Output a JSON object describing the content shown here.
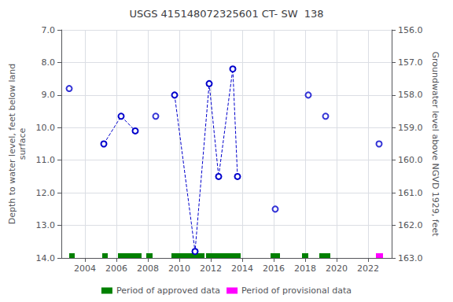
{
  "chart_data": {
    "type": "line",
    "title": "USGS 415148072325601 CT- SW  138",
    "ylabel": "Depth to water level, feet below land\nsurface",
    "y2label": "Groundwater level above NGVD 1929, feet",
    "xlim": [
      2002.5,
      2023.5
    ],
    "xticks": [
      2004,
      2006,
      2008,
      2010,
      2012,
      2014,
      2016,
      2018,
      2020,
      2022
    ],
    "ylim": [
      14.0,
      7.0
    ],
    "yticks": [
      {
        "value": 7.0,
        "label": "7.0"
      },
      {
        "value": 8.0,
        "label": "8.0"
      },
      {
        "value": 9.0,
        "label": "9.0"
      },
      {
        "value": 10.0,
        "label": "10.0"
      },
      {
        "value": 11.0,
        "label": "11.0"
      },
      {
        "value": 12.0,
        "label": "12.0"
      },
      {
        "value": 13.0,
        "label": "13.0"
      },
      {
        "value": 14.0,
        "label": "14.0"
      }
    ],
    "y2lim": [
      163.0,
      156.0
    ],
    "y2ticks": [
      {
        "value": 163.0,
        "label": "163.0"
      },
      {
        "value": 162.0,
        "label": "162.0"
      },
      {
        "value": 161.0,
        "label": "161.0"
      },
      {
        "value": 160.0,
        "label": "160.0"
      },
      {
        "value": 159.0,
        "label": "159.0"
      },
      {
        "value": 158.0,
        "label": "158.0"
      },
      {
        "value": 157.0,
        "label": "157.0"
      },
      {
        "value": 156.0,
        "label": "156.0"
      }
    ],
    "grid": true,
    "legend": "bottom",
    "series": [
      {
        "type": "scatter",
        "color": "#0000CC",
        "marker": "circle-open",
        "x": [
          2003.0
        ],
        "values": [
          8.8
        ]
      },
      {
        "type": "line",
        "color": "#0000CC",
        "marker": "circle-open",
        "line_style": "dashed",
        "x": [
          2005.2,
          2006.3,
          2007.2
        ],
        "values": [
          10.5,
          9.65,
          10.1
        ]
      },
      {
        "type": "scatter",
        "color": "#0000CC",
        "marker": "circle-open",
        "x": [
          2008.5
        ],
        "values": [
          9.65
        ]
      },
      {
        "type": "line",
        "color": "#0000CC",
        "marker": "circle-open",
        "line_style": "dashed",
        "x": [
          2009.7,
          2011.0,
          2011.9,
          2012.5,
          2013.4,
          2013.7
        ],
        "values": [
          9.0,
          13.8,
          8.65,
          11.5,
          8.2,
          11.5
        ]
      },
      {
        "type": "scatter",
        "color": "#0000CC",
        "marker": "circle-open",
        "x": [
          2016.1
        ],
        "values": [
          12.5
        ]
      },
      {
        "type": "scatter",
        "color": "#0000CC",
        "marker": "circle-open",
        "x": [
          2018.2
        ],
        "values": [
          9.0
        ]
      },
      {
        "type": "scatter",
        "color": "#0000CC",
        "marker": "circle-open",
        "x": [
          2019.3
        ],
        "values": [
          9.65
        ]
      },
      {
        "type": "scatter",
        "color": "#0000CC",
        "marker": "circle-open",
        "x": [
          2022.7
        ],
        "values": [
          10.5
        ]
      },
      {
        "type": "period",
        "name": "Period of approved data",
        "color": "#008000",
        "ranges": [
          [
            2003.0,
            2003.35
          ],
          [
            2005.1,
            2005.45
          ],
          [
            2006.1,
            2007.6
          ],
          [
            2007.9,
            2008.3
          ],
          [
            2009.5,
            2011.6
          ],
          [
            2011.7,
            2013.9
          ],
          [
            2015.8,
            2016.4
          ],
          [
            2017.8,
            2018.2
          ],
          [
            2018.9,
            2019.6
          ]
        ]
      },
      {
        "type": "period",
        "name": "Period of provisional data",
        "color": "#ff00ff",
        "ranges": [
          [
            2022.5,
            2022.95
          ]
        ]
      }
    ]
  }
}
